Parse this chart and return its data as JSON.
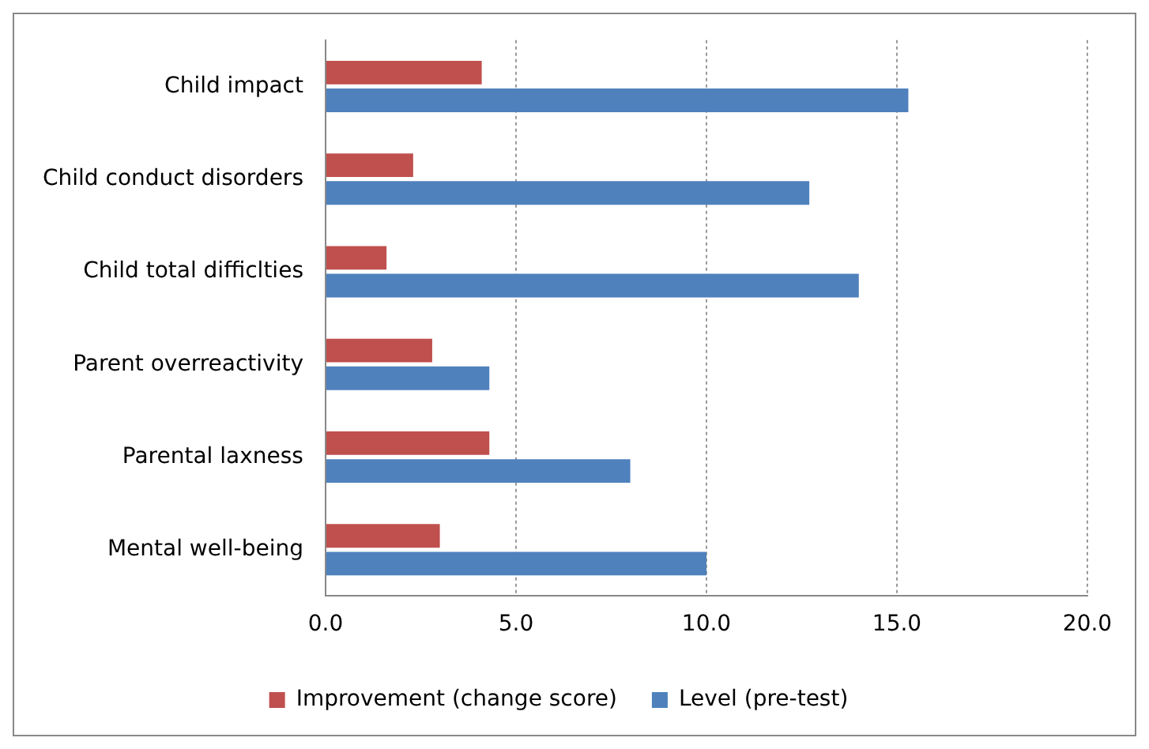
{
  "chart_data": {
    "type": "bar",
    "orientation": "horizontal",
    "categories": [
      "Child impact",
      "Child conduct disorders",
      "Child total difficlties",
      "Parent overreactivity",
      "Parental laxness",
      "Mental well-being"
    ],
    "series": [
      {
        "name": "Improvement (change score)",
        "color": "#c0504d",
        "values": [
          4.1,
          2.3,
          1.6,
          2.8,
          4.3,
          3.0
        ]
      },
      {
        "name": "Level (pre-test)",
        "color": "#4f81bd",
        "values": [
          15.3,
          12.7,
          14.0,
          4.3,
          8.0,
          10.0
        ]
      }
    ],
    "xlim": [
      0,
      20
    ],
    "xticks": [
      {
        "value": 0,
        "label": "0.0"
      },
      {
        "value": 5,
        "label": "5.0"
      },
      {
        "value": 10,
        "label": "10.0"
      },
      {
        "value": 15,
        "label": "15.0"
      },
      {
        "value": 20,
        "label": "20.0"
      }
    ],
    "grid": "x",
    "legend": "bottom"
  }
}
